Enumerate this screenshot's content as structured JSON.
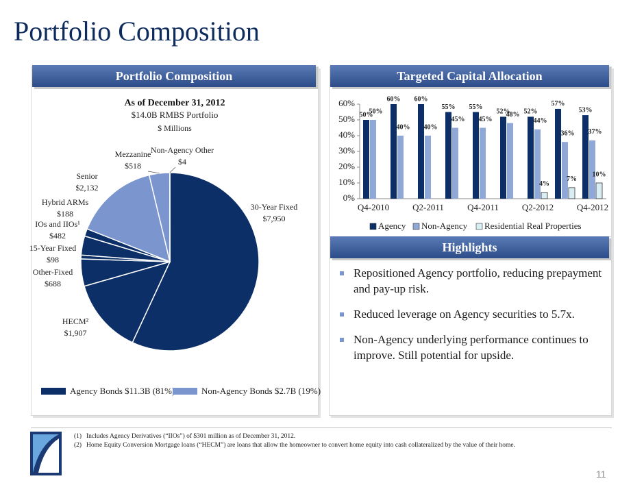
{
  "title": "Portfolio Composition",
  "page_number": "11",
  "panels": {
    "left": "Portfolio Composition",
    "right_top": "Targeted Capital Allocation",
    "right_bottom": "Highlights"
  },
  "highlights": [
    "Repositioned Agency portfolio, reducing prepayment and pay-up risk.",
    "Reduced leverage on Agency securities to 5.7x.",
    "Non-Agency underlying performance continues to improve. Still potential for upside."
  ],
  "footnotes": [
    {
      "marker": "(1)",
      "text": "Includes Agency Derivatives (“IIOs”) of $301 million as of December 31, 2012."
    },
    {
      "marker": "(2)",
      "text": "Home Equity Conversion Mortgage loans (“HECM”) are loans that allow the homeowner to convert home equity into cash collateralized by the value of their home."
    }
  ],
  "chart_data": [
    {
      "type": "pie",
      "title": "As of December 31, 2012",
      "subtitle": "$14.0B RMBS Portfolio",
      "unit_label": "$ Millions",
      "categories": [
        "30-Year Fixed",
        "HECM²",
        "Other-Fixed",
        "15-Year Fixed",
        "IOs and IIOs¹",
        "Hybrid ARMs",
        "Senior",
        "Mezzanine",
        "Non-Agency Other"
      ],
      "values": [
        7950,
        1907,
        688,
        98,
        482,
        188,
        2132,
        518,
        4
      ],
      "value_labels": [
        "$7,950",
        "$1,907",
        "$688",
        "$98",
        "$482",
        "$188",
        "$2,132",
        "$518",
        "$4"
      ],
      "colors": [
        "#0b2f66",
        "#0b2f66",
        "#0b2f66",
        "#0b2f66",
        "#0b2f66",
        "#0b2f66",
        "#7b95cf",
        "#7b95cf",
        "#7b95cf"
      ],
      "legend": [
        {
          "label": "Agency Bonds $11.3B (81%)",
          "color": "#0b2f66"
        },
        {
          "label": "Non-Agency Bonds $2.7B (19%)",
          "color": "#7b95cf"
        }
      ],
      "legend_position": "bottom"
    },
    {
      "type": "bar",
      "categories": [
        "Q4-2010",
        null,
        "Q2-2011",
        null,
        "Q4-2011",
        null,
        "Q2-2012",
        null,
        "Q4-2012"
      ],
      "series": [
        {
          "name": "Agency",
          "color": "#0b2f66",
          "values": [
            50,
            60,
            60,
            55,
            55,
            52,
            52,
            57,
            53
          ],
          "value_labels": [
            "50%",
            "60%",
            "60%",
            "55%",
            "55%",
            "52%",
            "52%",
            "57%",
            "53%"
          ]
        },
        {
          "name": "Non-Agency",
          "color": "#8fa8d8",
          "values": [
            50,
            40,
            40,
            45,
            45,
            48,
            44,
            36,
            37
          ],
          "value_labels": [
            "50%",
            "40%",
            "40%",
            "45%",
            "45%",
            "48%",
            "44%",
            "36%",
            "37%"
          ]
        },
        {
          "name": "Residential Real Properties",
          "color": "#d8eef2",
          "values": [
            null,
            null,
            null,
            null,
            null,
            null,
            4,
            7,
            10
          ],
          "value_labels": [
            null,
            null,
            null,
            null,
            null,
            null,
            "4%",
            "7%",
            "10%"
          ]
        }
      ],
      "ylim": [
        0,
        60
      ],
      "yticks": [
        {
          "value": 0,
          "label": "0%"
        },
        {
          "value": 10,
          "label": "10%"
        },
        {
          "value": 20,
          "label": "20%"
        },
        {
          "value": 30,
          "label": "30%"
        },
        {
          "value": 40,
          "label": "40%"
        },
        {
          "value": 50,
          "label": "50%"
        },
        {
          "value": 60,
          "label": "60%"
        }
      ],
      "grid": false,
      "legend_position": "bottom"
    }
  ]
}
